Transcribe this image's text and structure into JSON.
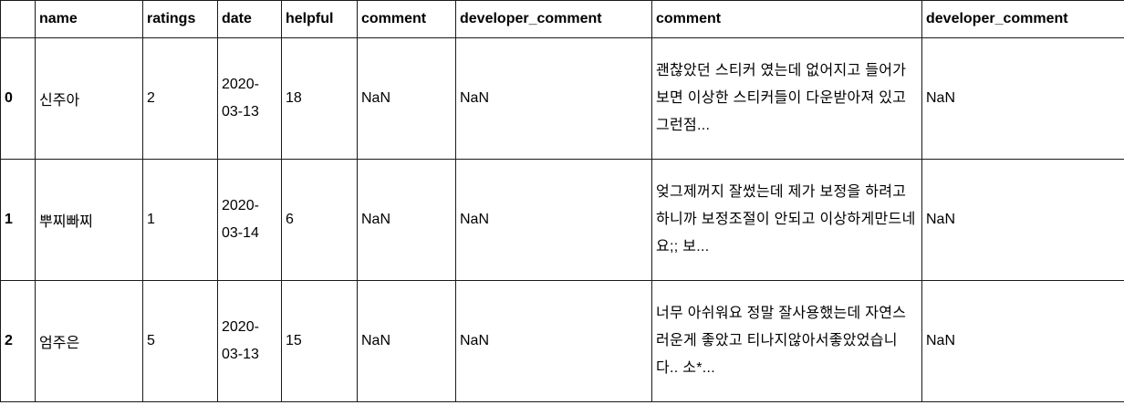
{
  "table": {
    "columns": [
      "",
      "name",
      "ratings",
      "date",
      "helpful",
      "comment",
      "developer_comment",
      "comment",
      "developer_comment"
    ],
    "rows": [
      {
        "index": "0",
        "name": "신주아",
        "ratings": "2",
        "date_line1": "2020-",
        "date_line2": "03-13",
        "helpful": "18",
        "comment": "NaN",
        "developer_comment": "NaN",
        "comment2": "괜찮았던 스티커 였는데 없어지고 들어가보면 이상한 스티커들이 다운받아져 있고 그런점...",
        "developer_comment2": "NaN"
      },
      {
        "index": "1",
        "name": "뿌찌빠찌",
        "ratings": "1",
        "date_line1": "2020-",
        "date_line2": "03-14",
        "helpful": "6",
        "comment": "NaN",
        "developer_comment": "NaN",
        "comment2": "엊그제꺼지 잘썼는데 제가 보정을 하려고하니까 보정조절이 안되고 이상하게만드네요;; 보...",
        "developer_comment2": "NaN"
      },
      {
        "index": "2",
        "name": "엄주은",
        "ratings": "5",
        "date_line1": "2020-",
        "date_line2": "03-13",
        "helpful": "15",
        "comment": "NaN",
        "developer_comment": "NaN",
        "comment2": "너무 아쉬워요 정말 잘사용했는데 자연스러운게 좋았고 티나지않아서좋았었습니다.. 소*...",
        "developer_comment2": "NaN"
      }
    ]
  }
}
